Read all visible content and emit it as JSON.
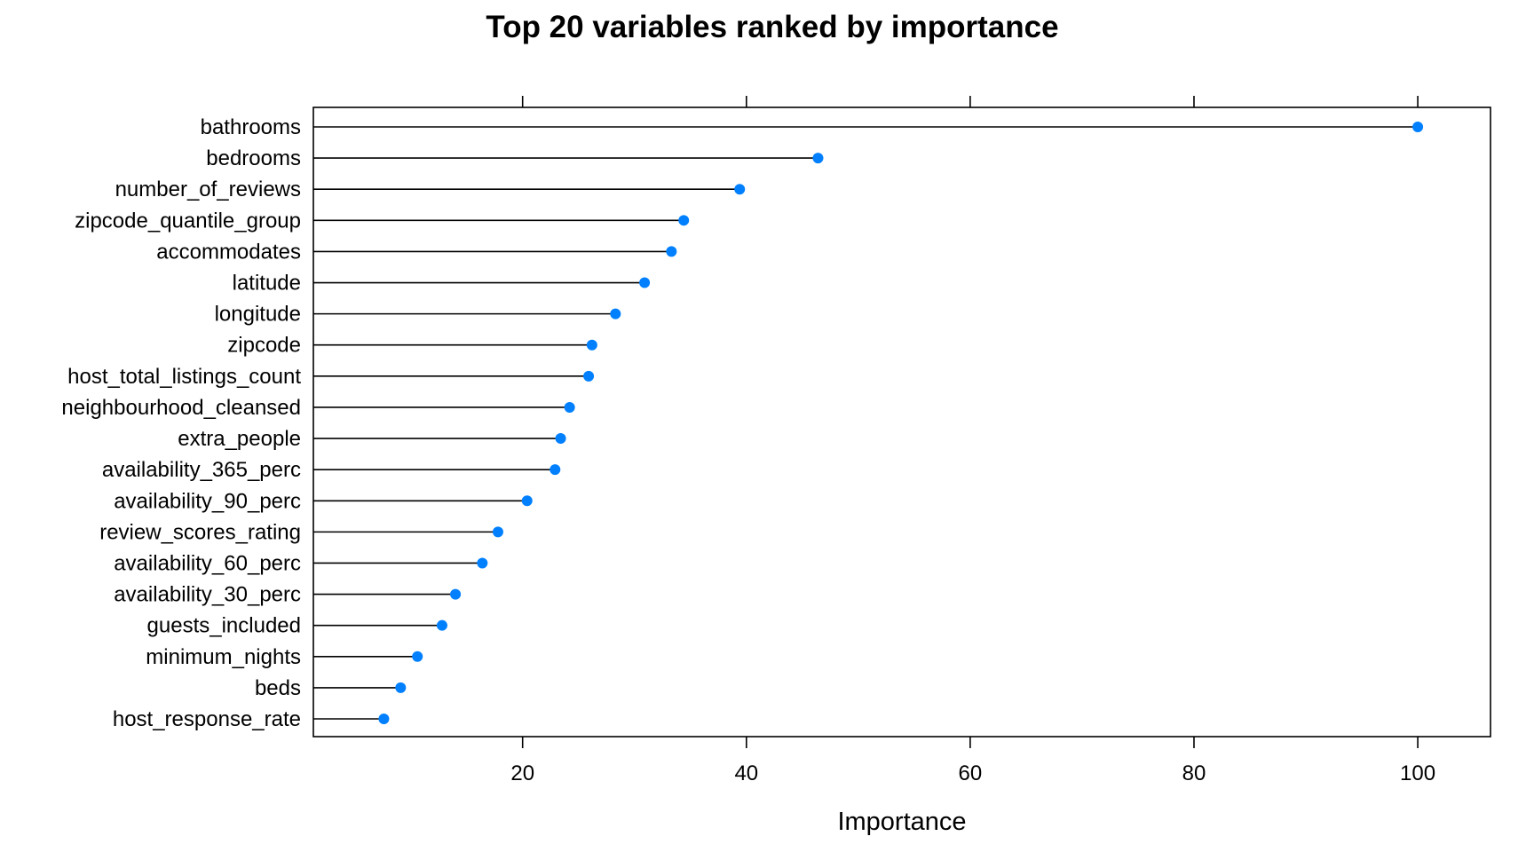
{
  "chart_data": {
    "type": "dotplot",
    "title": "Top 20 variables ranked by importance",
    "xlabel": "Importance",
    "ylabel": "",
    "xlim": [
      1.3,
      106.5
    ],
    "xticks": [
      20,
      40,
      60,
      80,
      100
    ],
    "xtick_labels": [
      "20",
      "40",
      "60",
      "80",
      "100"
    ],
    "ticks_on_top": true,
    "grid": false,
    "legend": "none",
    "point_color": "#0080FF",
    "line_color": "#000000",
    "categories": [
      "bathrooms",
      "bedrooms",
      "number_of_reviews",
      "zipcode_quantile_group",
      "accommodates",
      "latitude",
      "longitude",
      "zipcode",
      "host_total_listings_count",
      "neighbourhood_cleansed",
      "extra_people",
      "availability_365_perc",
      "availability_90_perc",
      "review_scores_rating",
      "availability_60_perc",
      "availability_30_perc",
      "guests_included",
      "minimum_nights",
      "beds",
      "host_response_rate"
    ],
    "values": [
      100,
      46.4,
      39.4,
      34.4,
      33.3,
      30.9,
      28.3,
      26.2,
      25.9,
      24.2,
      23.4,
      22.9,
      20.4,
      17.8,
      16.4,
      14.0,
      12.8,
      10.6,
      9.1,
      7.6
    ]
  }
}
